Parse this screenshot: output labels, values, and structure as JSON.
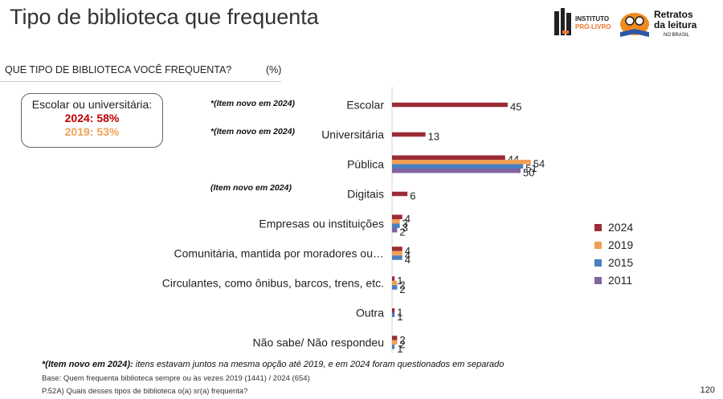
{
  "title": "Tipo de biblioteca que frequenta",
  "logo_left": [
    "INSTITUTO",
    "PRÓ-LIVRO"
  ],
  "logo_right": [
    "Retratos",
    "da leitura",
    "NO BRASIL"
  ],
  "question": "QUE TIPO DE BIBLIOTECA VOCÊ FREQUENTA?",
  "unit": "(%)",
  "callout": {
    "title": "Escolar ou universitária:",
    "line_2024": "2024: 58%",
    "line_2019": "2019: 53%"
  },
  "new_item_labels": [
    "*(Item novo em 2024)",
    "*(Item novo em 2024)",
    "(Item novo em 2024)"
  ],
  "footnote": {
    "bold": "*(Item novo em 2024):",
    "text": " itens estavam juntos na mesma opção até 2019, e em 2024 foram questionados em separado"
  },
  "base": "Base: Quem frequenta biblioteca sempre ou às vezes  2019 (1441) / 2024 (654)",
  "question_ref": "P.52A) Quais desses tipos de biblioteca o(a) sr(a) frequenta?",
  "page_number": "120",
  "colors": {
    "2024": "#9b2b35",
    "2019": "#f0a055",
    "2015": "#4a7fc1",
    "2011": "#8064a2",
    "callout_2024": "#c00000",
    "callout_2019": "#f0a055"
  },
  "chart_data": {
    "type": "bar",
    "orientation": "horizontal",
    "categories": [
      "Escolar",
      "Universitária",
      "Pública",
      "Digitais",
      "Empresas ou instituições",
      "Comunitária, mantida por moradores ou…",
      "Circulantes, como ônibus, barcos, trens, etc.",
      "Outra",
      "Não sabe/ Não respondeu"
    ],
    "series": [
      {
        "name": "2024",
        "color": "#9b2b35",
        "values": [
          45,
          13,
          44,
          6,
          4,
          4,
          1,
          1,
          2
        ]
      },
      {
        "name": "2019",
        "color": "#f0a055",
        "values": [
          null,
          null,
          54,
          null,
          3,
          4,
          2,
          null,
          2
        ]
      },
      {
        "name": "2015",
        "color": "#4a7fc1",
        "values": [
          null,
          null,
          51,
          null,
          3,
          4,
          2,
          1,
          1
        ]
      },
      {
        "name": "2011",
        "color": "#8064a2",
        "values": [
          null,
          null,
          50,
          null,
          2,
          null,
          null,
          null,
          null
        ]
      }
    ],
    "legend_position": "right",
    "grid": false
  }
}
